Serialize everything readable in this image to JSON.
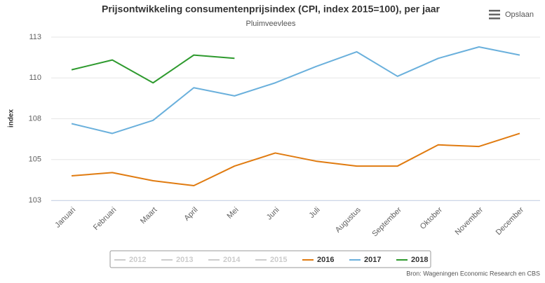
{
  "chart_data": {
    "type": "line",
    "title": "Prijsontwikkeling consumentenprijsindex (CPI, index 2015=100), per jaar",
    "subtitle": "Pluimveevlees",
    "y_label": "index",
    "source": "Bron: Wageningen Economic Research en CBS",
    "menu_label": "Opslaan",
    "categories": [
      "Januari",
      "Februari",
      "Maart",
      "April",
      "Mei",
      "Juni",
      "Juli",
      "Augustus",
      "September",
      "Oktober",
      "November",
      "December"
    ],
    "ylim": [
      102.5,
      112.5
    ],
    "yticks": [
      {
        "value": 102.5,
        "label": "103"
      },
      {
        "value": 105,
        "label": "105"
      },
      {
        "value": 107.5,
        "label": "108"
      },
      {
        "value": 110,
        "label": "110"
      },
      {
        "value": 112.5,
        "label": "113"
      }
    ],
    "grid": true,
    "legend": "bottom",
    "series": [
      {
        "name": "2012",
        "color": "#cccccc",
        "visible": false,
        "values": [
          null,
          null,
          null,
          null,
          null,
          null,
          null,
          null,
          null,
          null,
          null,
          null
        ]
      },
      {
        "name": "2013",
        "color": "#cccccc",
        "visible": false,
        "values": [
          null,
          null,
          null,
          null,
          null,
          null,
          null,
          null,
          null,
          null,
          null,
          null
        ]
      },
      {
        "name": "2014",
        "color": "#cccccc",
        "visible": false,
        "values": [
          null,
          null,
          null,
          null,
          null,
          null,
          null,
          null,
          null,
          null,
          null,
          null
        ]
      },
      {
        "name": "2015",
        "color": "#cccccc",
        "visible": false,
        "values": [
          null,
          null,
          null,
          null,
          null,
          null,
          null,
          null,
          null,
          null,
          null,
          null
        ]
      },
      {
        "name": "2016",
        "color": "#e07b10",
        "visible": true,
        "values": [
          104.0,
          104.2,
          103.7,
          103.4,
          104.6,
          105.4,
          104.9,
          104.6,
          104.6,
          105.9,
          105.8,
          106.6
        ]
      },
      {
        "name": "2017",
        "color": "#6ab0dc",
        "visible": true,
        "values": [
          107.2,
          106.6,
          107.4,
          109.4,
          108.9,
          109.7,
          110.7,
          111.6,
          110.1,
          111.2,
          111.9,
          111.4
        ]
      },
      {
        "name": "2018",
        "color": "#2e9a2e",
        "visible": true,
        "values": [
          110.5,
          111.1,
          109.7,
          111.4,
          111.2,
          null,
          null,
          null,
          null,
          null,
          null,
          null
        ]
      }
    ]
  }
}
